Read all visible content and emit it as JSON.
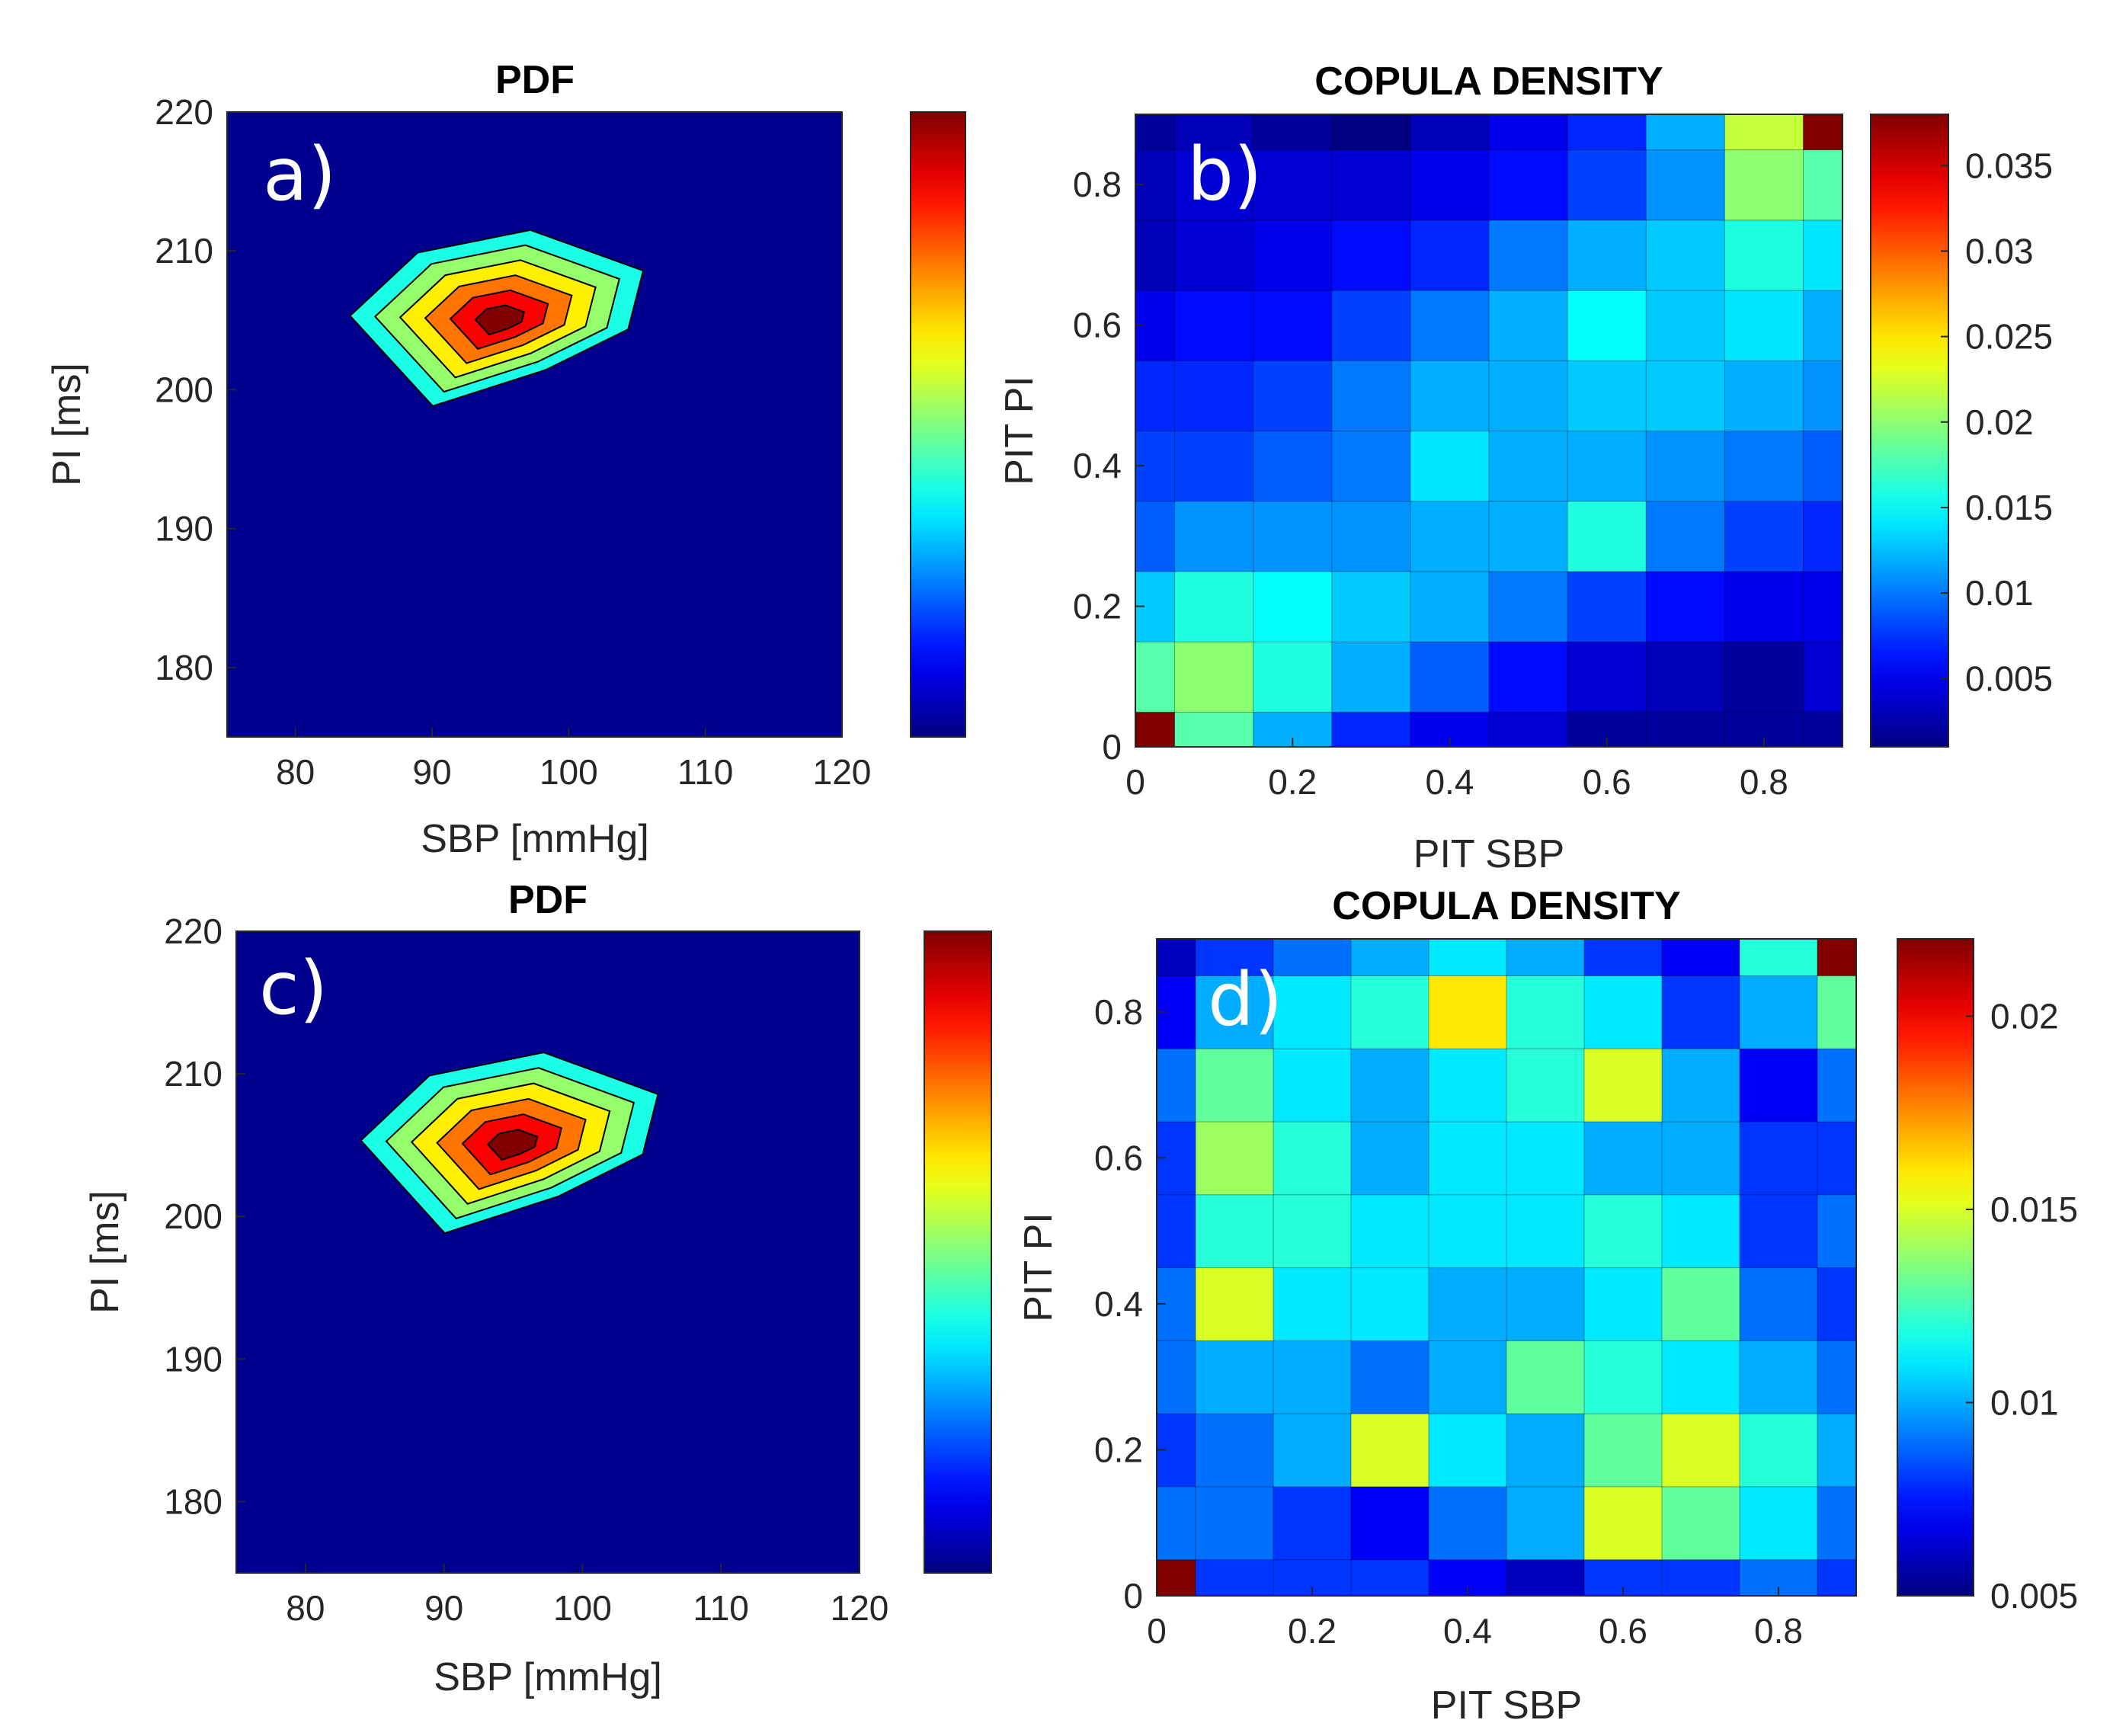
{
  "figure": "PDF and copula density contour plots of SBP and PI",
  "colors": {
    "background": "#00008f",
    "axis": "#262626",
    "contour_line": "#000000",
    "panel_label": "#ffffff"
  },
  "colormap": "jet",
  "panels": [
    {
      "label": "a)",
      "title": "PDF",
      "xlabel": "SBP [mmHg]",
      "ylabel": "PI [ms]",
      "xticks": [
        "80",
        "90",
        "100",
        "110",
        "120"
      ],
      "yticks": [
        "220",
        "210",
        "200",
        "190",
        "180"
      ],
      "colorbar_ticks": []
    },
    {
      "label": "b)",
      "title": "COPULA DENSITY",
      "xlabel": "PIT SBP",
      "ylabel": "PIT PI",
      "xticks": [
        "0",
        "0.2",
        "0.4",
        "0.6",
        "0.8"
      ],
      "yticks": [
        "0.8",
        "0.6",
        "0.4",
        "0.2",
        "0"
      ],
      "colorbar_ticks": [
        "0.035",
        "0.03",
        "0.025",
        "0.02",
        "0.015",
        "0.01",
        "0.005"
      ]
    },
    {
      "label": "c)",
      "title": "PDF",
      "xlabel": "SBP [mmHg]",
      "ylabel": "PI [ms]",
      "xticks": [
        "80",
        "90",
        "100",
        "110",
        "120"
      ],
      "yticks": [
        "220",
        "210",
        "200",
        "190",
        "180"
      ],
      "colorbar_ticks": []
    },
    {
      "label": "d)",
      "title": "COPULA DENSITY",
      "xlabel": "PIT SBP",
      "ylabel": "PIT PI",
      "xticks": [
        "0",
        "0.2",
        "0.4",
        "0.6",
        "0.8"
      ],
      "yticks": [
        "0.8",
        "0.6",
        "0.4",
        "0.2",
        "0"
      ],
      "colorbar_ticks": [
        "0.02",
        "0.015",
        "0.01",
        "0.005"
      ]
    }
  ],
  "chart_data": [
    {
      "type": "heatmap",
      "panel": "a",
      "title": "PDF",
      "xlabel": "SBP [mmHg]",
      "ylabel": "PI [ms]",
      "xlim": [
        75,
        120
      ],
      "ylim": [
        175,
        220
      ],
      "peak": {
        "x": 95,
        "y": 205
      },
      "levels": 6,
      "description_values": {
        "mode_SBP": 95,
        "mode_PI": 205
      }
    },
    {
      "type": "heatmap",
      "panel": "b",
      "title": "COPULA DENSITY",
      "xlabel": "PIT SBP",
      "ylabel": "PIT PI",
      "xlim": [
        0,
        0.9
      ],
      "ylim": [
        0,
        0.9
      ],
      "clim": [
        0.001,
        0.038
      ],
      "x": [
        0,
        0.1,
        0.2,
        0.3,
        0.4,
        0.5,
        0.6,
        0.7,
        0.8,
        0.9
      ],
      "y": [
        0,
        0.1,
        0.2,
        0.3,
        0.4,
        0.5,
        0.6,
        0.7,
        0.8,
        0.9
      ],
      "z": [
        [
          0.038,
          0.018,
          0.012,
          0.007,
          0.005,
          0.004,
          0.002,
          0.002,
          0.002,
          0.002
        ],
        [
          0.018,
          0.02,
          0.016,
          0.012,
          0.009,
          0.006,
          0.004,
          0.003,
          0.002,
          0.004
        ],
        [
          0.013,
          0.016,
          0.015,
          0.013,
          0.012,
          0.01,
          0.008,
          0.006,
          0.005,
          0.005
        ],
        [
          0.009,
          0.011,
          0.011,
          0.011,
          0.012,
          0.012,
          0.016,
          0.01,
          0.008,
          0.007
        ],
        [
          0.008,
          0.008,
          0.009,
          0.01,
          0.014,
          0.012,
          0.012,
          0.011,
          0.01,
          0.009
        ],
        [
          0.007,
          0.007,
          0.008,
          0.01,
          0.012,
          0.012,
          0.013,
          0.013,
          0.012,
          0.011
        ],
        [
          0.005,
          0.006,
          0.006,
          0.008,
          0.01,
          0.012,
          0.015,
          0.013,
          0.014,
          0.012
        ],
        [
          0.003,
          0.004,
          0.005,
          0.006,
          0.007,
          0.01,
          0.012,
          0.013,
          0.016,
          0.014
        ],
        [
          0.003,
          0.004,
          0.004,
          0.004,
          0.005,
          0.006,
          0.008,
          0.011,
          0.02,
          0.018
        ],
        [
          0.002,
          0.003,
          0.002,
          0.001,
          0.003,
          0.005,
          0.007,
          0.012,
          0.022,
          0.038
        ]
      ]
    },
    {
      "type": "heatmap",
      "panel": "c",
      "title": "PDF",
      "xlabel": "SBP [mmHg]",
      "ylabel": "PI [ms]",
      "xlim": [
        75,
        120
      ],
      "ylim": [
        175,
        220
      ],
      "peak": {
        "x": 95,
        "y": 205
      },
      "levels": 6,
      "description_values": {
        "mode_SBP": 95,
        "mode_PI": 205
      }
    },
    {
      "type": "heatmap",
      "panel": "d",
      "title": "COPULA DENSITY",
      "xlabel": "PIT SBP",
      "ylabel": "PIT PI",
      "xlim": [
        0,
        0.9
      ],
      "ylim": [
        0,
        0.9
      ],
      "clim": [
        0.005,
        0.022
      ],
      "x": [
        0,
        0.1,
        0.2,
        0.3,
        0.4,
        0.5,
        0.6,
        0.7,
        0.8,
        0.9
      ],
      "y": [
        0,
        0.1,
        0.2,
        0.3,
        0.4,
        0.5,
        0.6,
        0.7,
        0.8,
        0.9
      ],
      "z": [
        [
          0.022,
          0.008,
          0.008,
          0.008,
          0.007,
          0.006,
          0.008,
          0.008,
          0.009,
          0.008
        ],
        [
          0.009,
          0.009,
          0.008,
          0.007,
          0.009,
          0.01,
          0.015,
          0.013,
          0.011,
          0.009
        ],
        [
          0.008,
          0.009,
          0.01,
          0.015,
          0.011,
          0.01,
          0.013,
          0.015,
          0.012,
          0.01
        ],
        [
          0.009,
          0.01,
          0.01,
          0.009,
          0.01,
          0.013,
          0.012,
          0.011,
          0.01,
          0.009
        ],
        [
          0.009,
          0.015,
          0.011,
          0.011,
          0.01,
          0.01,
          0.011,
          0.013,
          0.009,
          0.008
        ],
        [
          0.008,
          0.012,
          0.012,
          0.011,
          0.011,
          0.011,
          0.012,
          0.011,
          0.008,
          0.009
        ],
        [
          0.008,
          0.014,
          0.012,
          0.01,
          0.011,
          0.011,
          0.01,
          0.01,
          0.008,
          0.008
        ],
        [
          0.009,
          0.013,
          0.011,
          0.01,
          0.011,
          0.012,
          0.015,
          0.01,
          0.007,
          0.009
        ],
        [
          0.007,
          0.01,
          0.011,
          0.012,
          0.016,
          0.012,
          0.011,
          0.008,
          0.01,
          0.013
        ],
        [
          0.006,
          0.008,
          0.009,
          0.01,
          0.011,
          0.01,
          0.008,
          0.007,
          0.012,
          0.022
        ]
      ]
    }
  ]
}
